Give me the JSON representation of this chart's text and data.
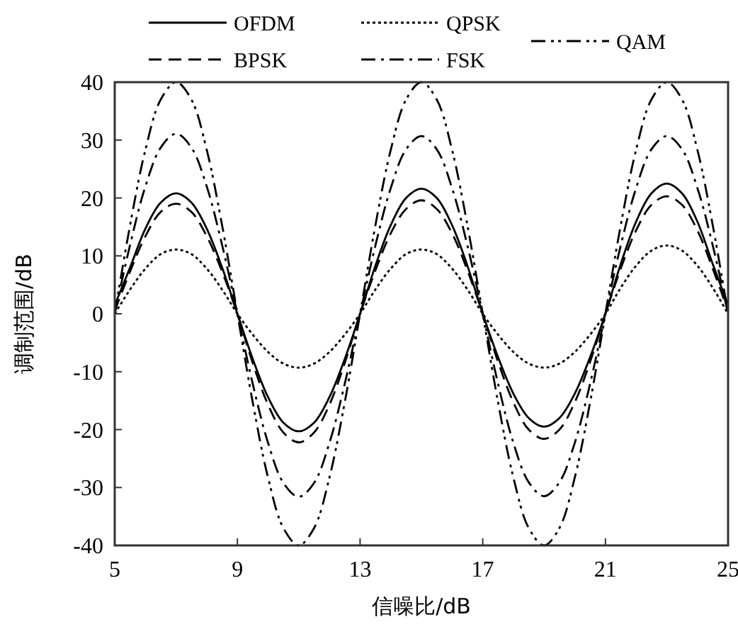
{
  "chart_data": {
    "type": "line",
    "xlabel": "信噪比/dB",
    "ylabel": "调制范围/dB",
    "x": [
      5,
      5.5,
      6,
      6.5,
      7,
      7.5,
      8,
      8.5,
      9,
      9.5,
      10,
      10.5,
      11,
      11.5,
      12,
      12.5,
      13,
      13.5,
      14,
      14.5,
      15,
      15.5,
      16,
      16.5,
      17,
      17.5,
      18,
      18.5,
      19,
      19.5,
      20,
      20.5,
      21,
      21.5,
      22,
      22.5,
      23,
      23.5,
      24,
      24.5,
      25
    ],
    "xlim": [
      5,
      25
    ],
    "xticks": [
      5,
      9,
      13,
      17,
      21,
      25
    ],
    "ylim": [
      -40,
      40
    ],
    "yticks": [
      -40,
      -30,
      -20,
      -10,
      0,
      10,
      20,
      30,
      40
    ],
    "grid": false,
    "legend": "top",
    "marker": "none",
    "series": [
      {
        "name": "OFDM",
        "color": "#000000",
        "line_style": "solid",
        "values": [
          1.5,
          8.0,
          14.7,
          19.2,
          20.8,
          19.2,
          14.7,
          8.0,
          0,
          -7.8,
          -14.4,
          -18.8,
          -20.3,
          -18.8,
          -14.4,
          -7.8,
          0,
          8.3,
          15.3,
          20.0,
          21.6,
          20.0,
          15.3,
          8.3,
          0,
          -7.5,
          -13.8,
          -18.0,
          -19.5,
          -18.0,
          -13.8,
          -7.5,
          0,
          8.6,
          15.9,
          20.8,
          22.5,
          20.8,
          15.9,
          8.6,
          1.5
        ]
      },
      {
        "name": "BPSK",
        "color": "#000000",
        "line_style": "dashed",
        "values": [
          0.5,
          7.3,
          13.4,
          17.6,
          19,
          17.6,
          13.4,
          7.3,
          0,
          -8.5,
          -15.7,
          -20.5,
          -22.2,
          -20.5,
          -15.7,
          -8.5,
          0,
          7.5,
          13.9,
          18.1,
          19.6,
          18.1,
          13.9,
          7.5,
          0,
          -8.3,
          -15.3,
          -20.0,
          -21.6,
          -20.0,
          -15.3,
          -8.3,
          0,
          7.8,
          14.4,
          18.8,
          20.3,
          18.8,
          14.4,
          7.8,
          0.5
        ]
      },
      {
        "name": "QPSK",
        "color": "#000000",
        "line_style": "dotted",
        "values": [
          0,
          4.2,
          7.8,
          10.3,
          11.1,
          10.3,
          7.8,
          4.2,
          0,
          -3.6,
          -6.6,
          -8.6,
          -9.3,
          -8.6,
          -6.6,
          -3.6,
          0,
          4.2,
          7.8,
          10.3,
          11.1,
          10.3,
          7.8,
          4.2,
          0,
          -3.6,
          -6.6,
          -8.6,
          -9.3,
          -8.6,
          -6.6,
          -3.6,
          0,
          4.5,
          8.3,
          10.9,
          11.8,
          10.9,
          8.3,
          4.5,
          0
        ]
      },
      {
        "name": "FSK",
        "color": "#000000",
        "line_style": "dashdot",
        "values": [
          0,
          11.9,
          22.0,
          28.7,
          31.1,
          28.7,
          22.0,
          11.9,
          0,
          -12.1,
          -22.3,
          -29.2,
          -31.6,
          -29.2,
          -22.3,
          -12.1,
          0,
          11.8,
          21.7,
          28.4,
          30.7,
          28.4,
          21.7,
          11.8,
          0,
          -12.1,
          -22.3,
          -29.1,
          -31.5,
          -29.1,
          -22.3,
          -12.1,
          0,
          11.8,
          21.7,
          28.4,
          30.7,
          28.4,
          21.7,
          11.8,
          0
        ]
      },
      {
        "name": "QAM",
        "color": "#000000",
        "line_style": "dashdotdot",
        "values": [
          0,
          15.3,
          28.3,
          37.0,
          40,
          37.0,
          28.3,
          15.3,
          0,
          -15.3,
          -28.3,
          -37.0,
          -40,
          -37.0,
          -28.3,
          -15.3,
          0,
          15.3,
          28.3,
          37.0,
          40,
          37.0,
          28.3,
          15.3,
          0,
          -15.3,
          -28.3,
          -37.0,
          -40,
          -37.0,
          -28.3,
          -15.3,
          0,
          15.3,
          28.3,
          37.0,
          40,
          37.0,
          28.3,
          15.3,
          0
        ]
      }
    ]
  }
}
